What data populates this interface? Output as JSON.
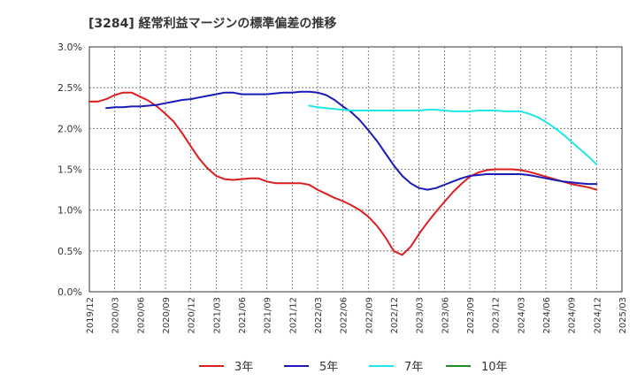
{
  "chart_data": {
    "type": "line",
    "title": "[3284]  経常利益マージンの標準偏差の推移",
    "xlabel": "",
    "ylabel": "",
    "ylim": [
      0,
      3.0
    ],
    "y_ticks": [
      "0.0%",
      "0.5%",
      "1.0%",
      "1.5%",
      "2.0%",
      "2.5%",
      "3.0%"
    ],
    "x_ticks": [
      "2019/12",
      "2020/03",
      "2020/06",
      "2020/09",
      "2020/12",
      "2021/03",
      "2021/06",
      "2021/09",
      "2021/12",
      "2022/03",
      "2022/06",
      "2022/09",
      "2022/12",
      "2023/03",
      "2023/06",
      "2023/09",
      "2023/12",
      "2024/03",
      "2024/06",
      "2024/09",
      "2024/12",
      "2025/03"
    ],
    "grid": true,
    "legend_position": "bottom",
    "series": [
      {
        "name": "3年",
        "color": "#dd1e1e",
        "points": [
          [
            "2019/12",
            2.33
          ],
          [
            "2020/01",
            2.33
          ],
          [
            "2020/02",
            2.36
          ],
          [
            "2020/03",
            2.41
          ],
          [
            "2020/04",
            2.44
          ],
          [
            "2020/05",
            2.44
          ],
          [
            "2020/06",
            2.39
          ],
          [
            "2020/07",
            2.34
          ],
          [
            "2020/08",
            2.27
          ],
          [
            "2020/09",
            2.18
          ],
          [
            "2020/10",
            2.08
          ],
          [
            "2020/11",
            1.94
          ],
          [
            "2020/12",
            1.78
          ],
          [
            "2021/01",
            1.63
          ],
          [
            "2021/02",
            1.51
          ],
          [
            "2021/03",
            1.42
          ],
          [
            "2021/04",
            1.38
          ],
          [
            "2021/05",
            1.37
          ],
          [
            "2021/06",
            1.38
          ],
          [
            "2021/07",
            1.39
          ],
          [
            "2021/08",
            1.39
          ],
          [
            "2021/09",
            1.35
          ],
          [
            "2021/10",
            1.33
          ],
          [
            "2021/11",
            1.33
          ],
          [
            "2021/12",
            1.33
          ],
          [
            "2022/01",
            1.33
          ],
          [
            "2022/02",
            1.31
          ],
          [
            "2022/03",
            1.25
          ],
          [
            "2022/04",
            1.2
          ],
          [
            "2022/05",
            1.15
          ],
          [
            "2022/06",
            1.11
          ],
          [
            "2022/07",
            1.06
          ],
          [
            "2022/08",
            1.0
          ],
          [
            "2022/09",
            0.92
          ],
          [
            "2022/10",
            0.81
          ],
          [
            "2022/11",
            0.67
          ],
          [
            "2022/12",
            0.5
          ],
          [
            "2023/01",
            0.45
          ],
          [
            "2023/02",
            0.55
          ],
          [
            "2023/03",
            0.71
          ],
          [
            "2023/04",
            0.85
          ],
          [
            "2023/05",
            0.98
          ],
          [
            "2023/06",
            1.1
          ],
          [
            "2023/07",
            1.22
          ],
          [
            "2023/08",
            1.32
          ],
          [
            "2023/09",
            1.41
          ],
          [
            "2023/10",
            1.46
          ],
          [
            "2023/11",
            1.49
          ],
          [
            "2023/12",
            1.5
          ],
          [
            "2024/01",
            1.5
          ],
          [
            "2024/02",
            1.5
          ],
          [
            "2024/03",
            1.49
          ],
          [
            "2024/04",
            1.47
          ],
          [
            "2024/05",
            1.44
          ],
          [
            "2024/06",
            1.41
          ],
          [
            "2024/07",
            1.38
          ],
          [
            "2024/08",
            1.35
          ],
          [
            "2024/09",
            1.32
          ],
          [
            "2024/10",
            1.3
          ],
          [
            "2024/11",
            1.28
          ],
          [
            "2024/12",
            1.25
          ]
        ]
      },
      {
        "name": "5年",
        "color": "#1a1ab8",
        "points": [
          [
            "2020/02",
            2.25
          ],
          [
            "2020/03",
            2.26
          ],
          [
            "2020/04",
            2.26
          ],
          [
            "2020/05",
            2.27
          ],
          [
            "2020/06",
            2.27
          ],
          [
            "2020/07",
            2.28
          ],
          [
            "2020/08",
            2.29
          ],
          [
            "2020/09",
            2.31
          ],
          [
            "2020/10",
            2.33
          ],
          [
            "2020/11",
            2.35
          ],
          [
            "2020/12",
            2.36
          ],
          [
            "2021/01",
            2.38
          ],
          [
            "2021/02",
            2.4
          ],
          [
            "2021/03",
            2.42
          ],
          [
            "2021/04",
            2.44
          ],
          [
            "2021/05",
            2.44
          ],
          [
            "2021/06",
            2.42
          ],
          [
            "2021/07",
            2.42
          ],
          [
            "2021/08",
            2.42
          ],
          [
            "2021/09",
            2.42
          ],
          [
            "2021/10",
            2.43
          ],
          [
            "2021/11",
            2.44
          ],
          [
            "2021/12",
            2.44
          ],
          [
            "2022/01",
            2.45
          ],
          [
            "2022/02",
            2.45
          ],
          [
            "2022/03",
            2.44
          ],
          [
            "2022/04",
            2.41
          ],
          [
            "2022/05",
            2.35
          ],
          [
            "2022/06",
            2.27
          ],
          [
            "2022/07",
            2.2
          ],
          [
            "2022/08",
            2.1
          ],
          [
            "2022/09",
            1.98
          ],
          [
            "2022/10",
            1.85
          ],
          [
            "2022/11",
            1.7
          ],
          [
            "2022/12",
            1.55
          ],
          [
            "2023/01",
            1.42
          ],
          [
            "2023/02",
            1.33
          ],
          [
            "2023/03",
            1.27
          ],
          [
            "2023/04",
            1.25
          ],
          [
            "2023/05",
            1.27
          ],
          [
            "2023/06",
            1.31
          ],
          [
            "2023/07",
            1.35
          ],
          [
            "2023/08",
            1.39
          ],
          [
            "2023/09",
            1.42
          ],
          [
            "2023/10",
            1.43
          ],
          [
            "2023/11",
            1.44
          ],
          [
            "2023/12",
            1.44
          ],
          [
            "2024/01",
            1.44
          ],
          [
            "2024/02",
            1.44
          ],
          [
            "2024/03",
            1.44
          ],
          [
            "2024/04",
            1.43
          ],
          [
            "2024/05",
            1.41
          ],
          [
            "2024/06",
            1.39
          ],
          [
            "2024/07",
            1.37
          ],
          [
            "2024/08",
            1.35
          ],
          [
            "2024/09",
            1.34
          ],
          [
            "2024/10",
            1.33
          ],
          [
            "2024/11",
            1.32
          ],
          [
            "2024/12",
            1.32
          ]
        ]
      },
      {
        "name": "7年",
        "color": "#22e5e5",
        "points": [
          [
            "2022/02",
            2.28
          ],
          [
            "2022/03",
            2.26
          ],
          [
            "2022/04",
            2.25
          ],
          [
            "2022/05",
            2.24
          ],
          [
            "2022/06",
            2.23
          ],
          [
            "2022/07",
            2.22
          ],
          [
            "2022/08",
            2.22
          ],
          [
            "2022/09",
            2.22
          ],
          [
            "2022/10",
            2.22
          ],
          [
            "2022/11",
            2.22
          ],
          [
            "2022/12",
            2.22
          ],
          [
            "2023/01",
            2.22
          ],
          [
            "2023/02",
            2.22
          ],
          [
            "2023/03",
            2.22
          ],
          [
            "2023/04",
            2.23
          ],
          [
            "2023/05",
            2.23
          ],
          [
            "2023/06",
            2.22
          ],
          [
            "2023/07",
            2.21
          ],
          [
            "2023/08",
            2.21
          ],
          [
            "2023/09",
            2.21
          ],
          [
            "2023/10",
            2.22
          ],
          [
            "2023/11",
            2.22
          ],
          [
            "2023/12",
            2.22
          ],
          [
            "2024/01",
            2.21
          ],
          [
            "2024/02",
            2.21
          ],
          [
            "2024/03",
            2.21
          ],
          [
            "2024/04",
            2.18
          ],
          [
            "2024/05",
            2.14
          ],
          [
            "2024/06",
            2.08
          ],
          [
            "2024/07",
            2.01
          ],
          [
            "2024/08",
            1.93
          ],
          [
            "2024/09",
            1.84
          ],
          [
            "2024/10",
            1.75
          ],
          [
            "2024/11",
            1.66
          ],
          [
            "2024/12",
            1.56
          ]
        ]
      },
      {
        "name": "10年",
        "color": "#1e8c1e",
        "points": []
      }
    ]
  }
}
